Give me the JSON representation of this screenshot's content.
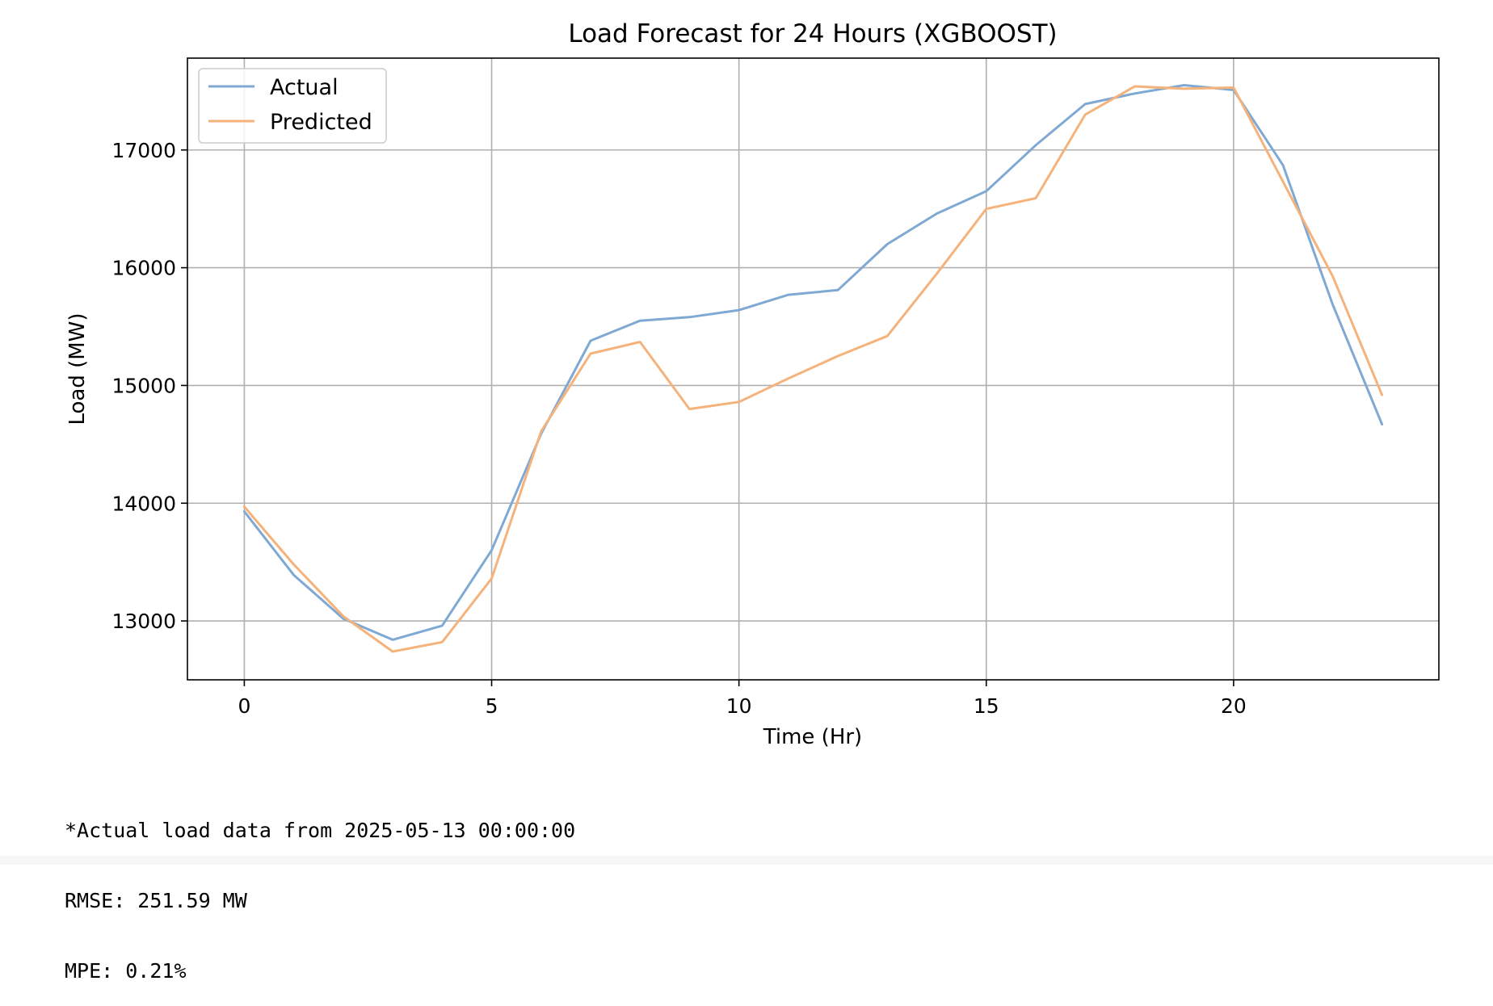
{
  "chart_data": {
    "type": "line",
    "title": "Load Forecast for 24 Hours (XGBOOST)",
    "xlabel": "Time (Hr)",
    "ylabel": "Load (MW)",
    "xlim": [
      -1.15,
      24.15
    ],
    "ylim": [
      12500,
      17780
    ],
    "xticks": [
      0,
      5,
      10,
      15,
      20
    ],
    "yticks": [
      13000,
      14000,
      15000,
      16000,
      17000
    ],
    "grid": true,
    "legend_position": "top-left",
    "x": [
      0,
      1,
      2,
      3,
      4,
      5,
      6,
      7,
      8,
      9,
      10,
      11,
      12,
      13,
      14,
      15,
      16,
      17,
      18,
      19,
      20,
      21,
      22,
      23
    ],
    "series": [
      {
        "name": "Actual",
        "color": "#7fa9d2",
        "values": [
          13930,
          13390,
          13020,
          12840,
          12960,
          13600,
          14590,
          15380,
          15550,
          15580,
          15640,
          15770,
          15810,
          16200,
          16460,
          16650,
          17040,
          17390,
          17480,
          17550,
          17510,
          16870,
          15690,
          14670
        ]
      },
      {
        "name": "Predicted",
        "color": "#f5b27b",
        "values": [
          13970,
          13480,
          13040,
          12740,
          12820,
          13360,
          14610,
          15270,
          15370,
          14800,
          14860,
          15060,
          15250,
          15420,
          15950,
          16500,
          16590,
          17300,
          17540,
          17520,
          17530,
          16730,
          15930,
          14920
        ]
      }
    ]
  },
  "notes": [
    "*Actual load data from 2025-05-13 00:00:00",
    "RMSE: 251.59 MW",
    "MPE: 0.21%"
  ]
}
